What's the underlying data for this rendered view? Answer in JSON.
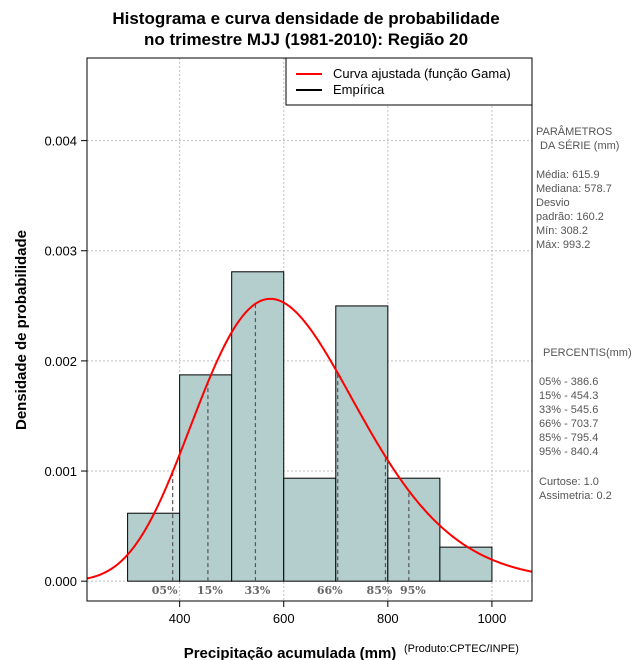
{
  "chart_data": {
    "type": "bar",
    "title_lines": [
      "Histograma e curva densidade de probabilidade",
      "no trimestre MJJ (1981-2010): Região 20"
    ],
    "xlabel": "Precipitação acumulada (mm)",
    "ylabel": "Densidade de probabilidade",
    "credit": "(Produto:CPTEC/INPE)",
    "xlim": [
      222,
      1077
    ],
    "ylim": [
      -0.00018,
      0.00475
    ],
    "x_ticks": [
      {
        "value": 400,
        "label": "400"
      },
      {
        "value": 600,
        "label": "600"
      },
      {
        "value": 800,
        "label": "800"
      },
      {
        "value": 1000,
        "label": "1000"
      }
    ],
    "y_ticks": [
      {
        "value": 0.0,
        "label": "0.000"
      },
      {
        "value": 0.001,
        "label": "0.001"
      },
      {
        "value": 0.002,
        "label": "0.002"
      },
      {
        "value": 0.003,
        "label": "0.003"
      },
      {
        "value": 0.004,
        "label": "0.004"
      }
    ],
    "grid": true,
    "bins": [
      {
        "start": 300,
        "end": 400,
        "density": 0.000617
      },
      {
        "start": 400,
        "end": 500,
        "density": 0.001873
      },
      {
        "start": 500,
        "end": 600,
        "density": 0.002809
      },
      {
        "start": 600,
        "end": 700,
        "density": 0.000935
      },
      {
        "start": 700,
        "end": 800,
        "density": 0.002499
      },
      {
        "start": 800,
        "end": 900,
        "density": 0.000935
      },
      {
        "start": 900,
        "end": 1000,
        "density": 0.000309
      }
    ],
    "fitted_curve": {
      "name": "Curva ajustada (função Gama)",
      "color": "#ff0000",
      "distribution": "gamma",
      "mean": 615.9,
      "sd": 160.2
    },
    "legend": {
      "position": "top-right",
      "entries": [
        {
          "label": "Curva ajustada (função Gama)",
          "color": "#ff0000"
        },
        {
          "label": "Empírica",
          "color": "#000000"
        }
      ]
    },
    "percentiles": [
      {
        "label": "05%",
        "value": 386.6
      },
      {
        "label": "15%",
        "value": 454.3
      },
      {
        "label": "33%",
        "value": 545.6
      },
      {
        "label": "66%",
        "value": 703.7
      },
      {
        "label": "85%",
        "value": 795.4
      },
      {
        "label": "95%",
        "value": 840.4
      }
    ],
    "colors": {
      "bar_fill": "#b4cdcd",
      "bar_stroke": "#000000",
      "grid": "#bebebe",
      "percentile_line": "#555555"
    }
  },
  "side_panel": {
    "params_title_1": "PARÂMETROS",
    "params_title_2": "DA SÉRIE (mm)",
    "media": "Média:  615.9",
    "mediana": "Mediana:  578.7",
    "desvio_1": "Desvio",
    "desvio_2": "padrão:  160.2",
    "min": "Mín:  308.2",
    "max": "Máx:  993.2",
    "percentis_title": "PERCENTIS(mm)",
    "p05": "05% -  386.6",
    "p15": "15% -  454.3",
    "p33": "33% -  545.6",
    "p66": "66% -  703.7",
    "p85": "85% -  795.4",
    "p95": "95% -  840.4",
    "curtose": "Curtose:  1.0",
    "assimetria": "Assimetria:  0.2"
  }
}
